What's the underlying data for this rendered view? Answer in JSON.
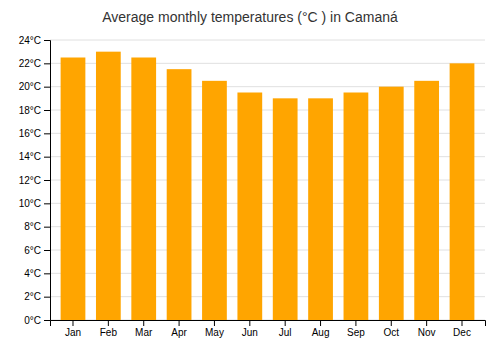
{
  "chart_data": {
    "type": "bar",
    "title": "Average monthly temperatures (°C ) in Camaná",
    "categories": [
      "Jan",
      "Feb",
      "Mar",
      "Apr",
      "May",
      "Jun",
      "Jul",
      "Aug",
      "Sep",
      "Oct",
      "Nov",
      "Dec"
    ],
    "values": [
      22.5,
      23.0,
      22.5,
      21.5,
      20.5,
      19.5,
      19.0,
      19.0,
      19.5,
      20.0,
      20.5,
      22.0
    ],
    "color": "#FFA500",
    "ylim": [
      0,
      24
    ],
    "yticks": [
      {
        "value": 0,
        "label": "0°C"
      },
      {
        "value": 2,
        "label": "2°C"
      },
      {
        "value": 4,
        "label": "4°C"
      },
      {
        "value": 6,
        "label": "6°C"
      },
      {
        "value": 8,
        "label": "8°C"
      },
      {
        "value": 10,
        "label": "10°C"
      },
      {
        "value": 12,
        "label": "12°C"
      },
      {
        "value": 14,
        "label": "14°C"
      },
      {
        "value": 16,
        "label": "16°C"
      },
      {
        "value": 18,
        "label": "18°C"
      },
      {
        "value": 20,
        "label": "20°C"
      },
      {
        "value": 22,
        "label": "22°C"
      },
      {
        "value": 24,
        "label": "24°C"
      }
    ],
    "grid": true
  }
}
